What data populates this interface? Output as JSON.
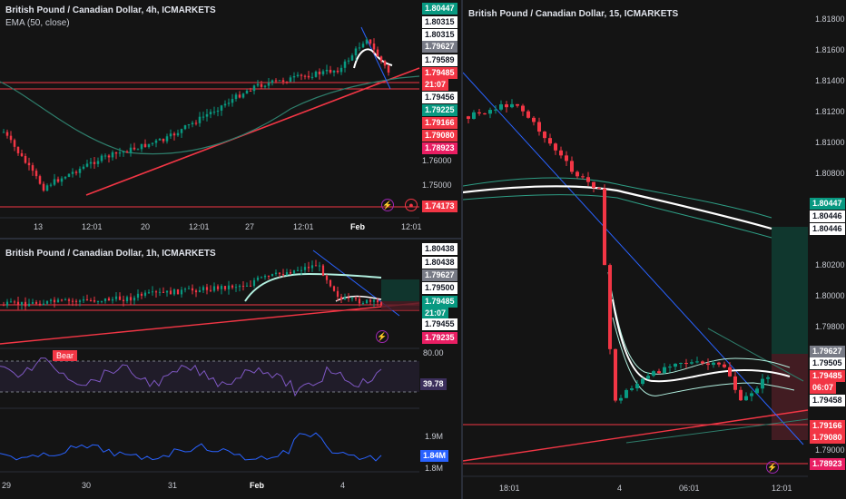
{
  "colors": {
    "bg": "#141414",
    "up": "#089981",
    "down": "#f23645",
    "trend_red": "#f23645",
    "trend_blue": "#2962ff",
    "ema": "#2e7d6b",
    "rsi": "#7e57c2",
    "vol_line": "#2962ff"
  },
  "top_left": {
    "title": "British Pound / Canadian Dollar, 4h, ICMARKETS",
    "indicator": "EMA (50, close)",
    "price_tags": [
      {
        "text": "1.80447",
        "style": "green"
      },
      {
        "text": "1.80315",
        "style": "white"
      },
      {
        "text": "1.80315",
        "style": "white"
      },
      {
        "text": "1.79627",
        "style": "gray"
      },
      {
        "text": "1.79589",
        "style": "white"
      },
      {
        "text": "1.79485",
        "style": "red"
      },
      {
        "text": "21:07",
        "style": "red"
      },
      {
        "text": "1.79456",
        "style": "white"
      },
      {
        "text": "1.79225",
        "style": "green"
      },
      {
        "text": "1.79166",
        "style": "red"
      },
      {
        "text": "1.79080",
        "style": "red"
      },
      {
        "text": "1.78923",
        "style": "pink"
      },
      {
        "text": "1.76000",
        "style": "axis"
      },
      {
        "text": "1.75000",
        "style": "axis"
      },
      {
        "text": "1.74173",
        "style": "red"
      }
    ],
    "time_labels": [
      "13",
      "12:01",
      "20",
      "12:01",
      "27",
      "12:01",
      "Feb",
      "12:01"
    ]
  },
  "bottom_left": {
    "title": "British Pound / Canadian Dollar, 1h, ICMARKETS",
    "price_tags": [
      {
        "text": "1.80438",
        "style": "white"
      },
      {
        "text": "1.80438",
        "style": "white"
      },
      {
        "text": "1.79627",
        "style": "gray"
      },
      {
        "text": "1.79500",
        "style": "white"
      },
      {
        "text": "1.79485",
        "style": "green"
      },
      {
        "text": "21:07",
        "style": "green"
      },
      {
        "text": "1.79455",
        "style": "white"
      },
      {
        "text": "1.79235",
        "style": "pink"
      }
    ],
    "rsi": {
      "level_label": "80.00",
      "value": "39.78",
      "badge": "Bear"
    },
    "volume": {
      "label_top": "1.9M",
      "value": "1.84M",
      "label_bottom": "1.8M"
    },
    "time_labels": [
      "29",
      "30",
      "31",
      "Feb",
      "4"
    ]
  },
  "right": {
    "title": "British Pound / Canadian Dollar, 15, ICMARKETS",
    "axis_labels": [
      "1.81800",
      "1.81600",
      "1.81400",
      "1.81200",
      "1.81000",
      "1.80800",
      "1.80200",
      "1.80000",
      "1.79800",
      "1.79000"
    ],
    "price_tags": [
      {
        "text": "1.80447",
        "style": "green"
      },
      {
        "text": "1.80446",
        "style": "white"
      },
      {
        "text": "1.80446",
        "style": "white"
      },
      {
        "text": "1.79627",
        "style": "gray"
      },
      {
        "text": "1.79505",
        "style": "white"
      },
      {
        "text": "1.79485",
        "style": "red"
      },
      {
        "text": "06:07",
        "style": "red"
      },
      {
        "text": "1.79458",
        "style": "white"
      },
      {
        "text": "1.79166",
        "style": "red"
      },
      {
        "text": "1.79080",
        "style": "red"
      },
      {
        "text": "1.78923",
        "style": "pink"
      }
    ],
    "time_labels": [
      "18:01",
      "4",
      "06:01",
      "12:01"
    ]
  }
}
